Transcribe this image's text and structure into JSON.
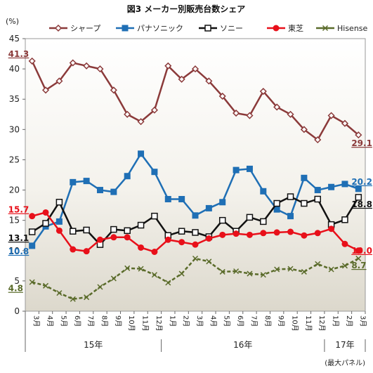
{
  "chart_data": {
    "type": "line",
    "title": "図3 メーカー別販売台数シェア",
    "ylabel": "(%)",
    "note": "(最大パネル)",
    "ylim": [
      0,
      45
    ],
    "yticks": [
      0,
      5,
      10,
      15,
      20,
      25,
      30,
      35,
      40,
      45
    ],
    "grid": false,
    "legend_position": "top",
    "categories": [
      "3月",
      "4月",
      "5月",
      "6月",
      "7月",
      "8月",
      "9月",
      "10月",
      "11月",
      "12月",
      "1月",
      "2月",
      "3月",
      "4月",
      "5月",
      "6月",
      "7月",
      "8月",
      "9月",
      "10月",
      "11月",
      "12月",
      "1月",
      "2月",
      "3月"
    ],
    "year_groups": [
      {
        "label": "15年",
        "start": 0,
        "end": 9
      },
      {
        "label": "16年",
        "start": 10,
        "end": 21
      },
      {
        "label": "17年",
        "start": 22,
        "end": 24
      }
    ],
    "series": [
      {
        "name": "シャープ",
        "color": "#8b3a3a",
        "marker": "diamond-open",
        "values": [
          41.3,
          36.5,
          38.0,
          41.0,
          40.5,
          40.0,
          36.5,
          32.5,
          31.3,
          33.2,
          40.5,
          38.3,
          40.0,
          38.0,
          35.5,
          32.7,
          32.3,
          36.3,
          33.7,
          32.5,
          30.0,
          28.3,
          32.3,
          31.0,
          29.1
        ],
        "end_labels": {
          "first": "41.3",
          "last": "29.1"
        }
      },
      {
        "name": "パナソニック",
        "color": "#1f6fb5",
        "marker": "square-filled",
        "values": [
          10.8,
          14.0,
          14.8,
          21.3,
          21.5,
          20.0,
          19.7,
          22.3,
          26.0,
          23.0,
          18.5,
          18.5,
          15.8,
          17.0,
          18.0,
          23.3,
          23.5,
          19.8,
          16.8,
          15.7,
          22.0,
          20.0,
          20.5,
          21.0,
          20.2
        ],
        "end_labels": {
          "first": "10.8",
          "last": "20.2"
        }
      },
      {
        "name": "ソニー",
        "color": "#111111",
        "marker": "square-open",
        "values": [
          13.1,
          14.5,
          18.0,
          13.2,
          13.4,
          11.0,
          13.5,
          13.3,
          14.2,
          15.7,
          12.5,
          13.2,
          13.0,
          12.3,
          15.0,
          13.2,
          15.5,
          14.8,
          17.8,
          18.9,
          17.8,
          18.5,
          14.3,
          15.1,
          18.8
        ],
        "end_labels": {
          "first": "13.1",
          "last": "18.8"
        }
      },
      {
        "name": "東芝",
        "color": "#e8101a",
        "marker": "circle-filled",
        "values": [
          15.7,
          16.3,
          13.3,
          10.2,
          9.9,
          11.8,
          12.2,
          12.2,
          10.5,
          9.8,
          11.8,
          11.4,
          11.0,
          12.0,
          12.6,
          12.8,
          12.6,
          12.9,
          13.0,
          13.1,
          12.5,
          12.9,
          13.6,
          11.1,
          10.0
        ],
        "end_labels": {
          "first": "15.7",
          "last": "10.0"
        }
      },
      {
        "name": "Hisense",
        "color": "#5a6b2a",
        "marker": "x",
        "values": [
          4.8,
          4.2,
          3.0,
          2.0,
          2.3,
          4.0,
          5.4,
          7.1,
          7.0,
          6.0,
          4.7,
          6.2,
          8.7,
          8.2,
          6.5,
          6.6,
          6.2,
          6.0,
          6.9,
          7.0,
          6.5,
          7.8,
          6.9,
          7.5,
          8.7
        ],
        "end_labels": {
          "first": "4.8",
          "last": "8.7"
        }
      }
    ]
  }
}
